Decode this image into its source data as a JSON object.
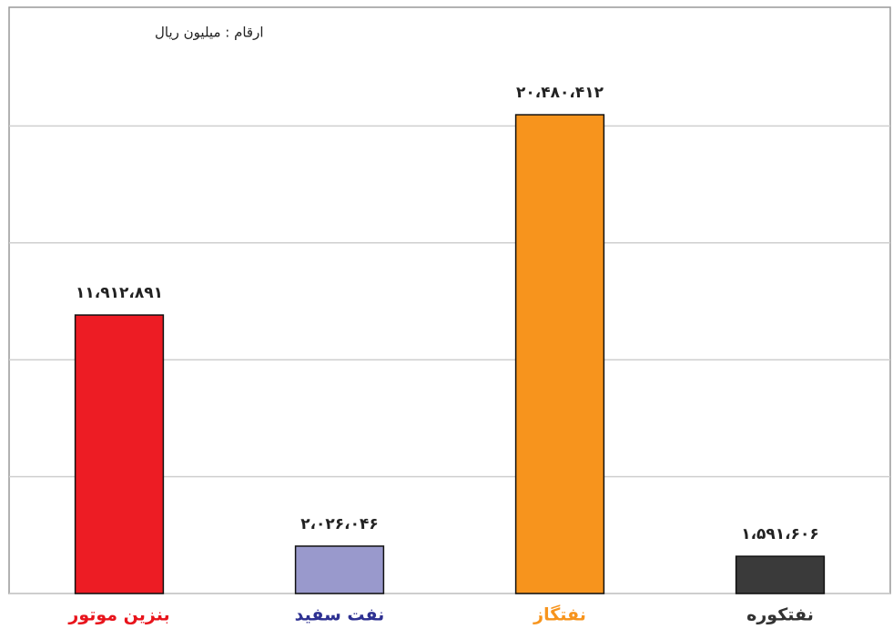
{
  "chart_data": {
    "type": "bar",
    "annotation": "ارقام : میلیون ریال",
    "categories": [
      "بنزین موتور",
      "نفت سفید",
      "نفتگاز",
      "نفتکوره"
    ],
    "category_colors": [
      "#e8141c",
      "#2e3192",
      "#f7941d",
      "#333333"
    ],
    "values": [
      11912891,
      2026046,
      20480412,
      1591606
    ],
    "value_labels": [
      "۱۱،۹۱۲،۸۹۱",
      "۲،۰۲۶،۰۴۶",
      "۲۰،۴۸۰،۴۱۲",
      "۱،۵۹۱،۶۰۶"
    ],
    "colors": [
      "#ed1c24",
      "#9999cc",
      "#f7941d",
      "#3a3a3a"
    ],
    "ylim": [
      0,
      25000000
    ],
    "yticks": [
      0,
      5000000,
      10000000,
      15000000,
      20000000
    ],
    "grid": true
  }
}
